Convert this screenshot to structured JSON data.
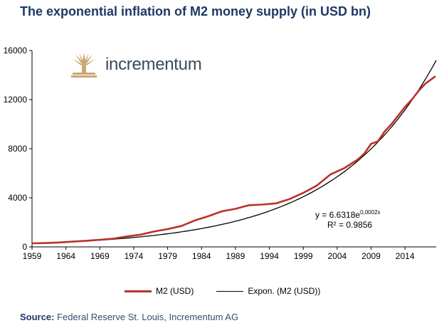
{
  "title": "The exponential inflation of M2 money supply (in USD bn)",
  "logo": {
    "wordmark": "incrementum",
    "icon": "tree-logo-icon",
    "color": "#c9a872"
  },
  "source": {
    "label": "Source:",
    "text": " Federal Reserve St. Louis, Incrementum AG"
  },
  "colors": {
    "title": "#1f3864",
    "m2": "#b9312c",
    "expon": "#000000"
  },
  "chart_data": {
    "type": "line",
    "title": "The exponential inflation of M2 money supply (in USD bn)",
    "xlabel": "",
    "ylabel": "",
    "xlim": [
      1959,
      2018.6
    ],
    "ylim": [
      0,
      16000
    ],
    "yticks": [
      "0",
      "4000",
      "8000",
      "12000",
      "16000"
    ],
    "xticks": [
      "1959",
      "1964",
      "1969",
      "1974",
      "1979",
      "1984",
      "1989",
      "1994",
      "1999",
      "2004",
      "2009",
      "2014"
    ],
    "grid": false,
    "legend_position": "bottom",
    "annotation": {
      "equation_prefix": "y = 6.6318e",
      "equation_exponent": "0,0002x",
      "r2": "R² = 0.9856"
    },
    "series": [
      {
        "name": "M2 (USD)",
        "color": "#b9312c",
        "x": [
          1959,
          1961,
          1963,
          1965,
          1967,
          1969,
          1971,
          1973,
          1975,
          1977,
          1979,
          1981,
          1983,
          1985,
          1987,
          1989,
          1991,
          1993,
          1995,
          1997,
          1999,
          2001,
          2003,
          2005,
          2007,
          2008,
          2009,
          2010,
          2011,
          2012,
          2013,
          2014,
          2015,
          2016,
          2017,
          2018.5
        ],
        "y": [
          290,
          315,
          360,
          430,
          500,
          580,
          670,
          850,
          1000,
          1250,
          1450,
          1700,
          2150,
          2500,
          2900,
          3100,
          3400,
          3450,
          3550,
          3900,
          4400,
          5000,
          5900,
          6400,
          7100,
          7600,
          8400,
          8600,
          9400,
          10000,
          10700,
          11400,
          12000,
          12700,
          13300,
          13900
        ]
      },
      {
        "name": "Expon. (M2 (USD))",
        "color": "#000000",
        "function": {
          "a": 6.6318,
          "b": 0.0002,
          "x_start": 1959,
          "x_end": 2018.6,
          "y_start": 280,
          "y_end": 15200
        }
      }
    ]
  }
}
